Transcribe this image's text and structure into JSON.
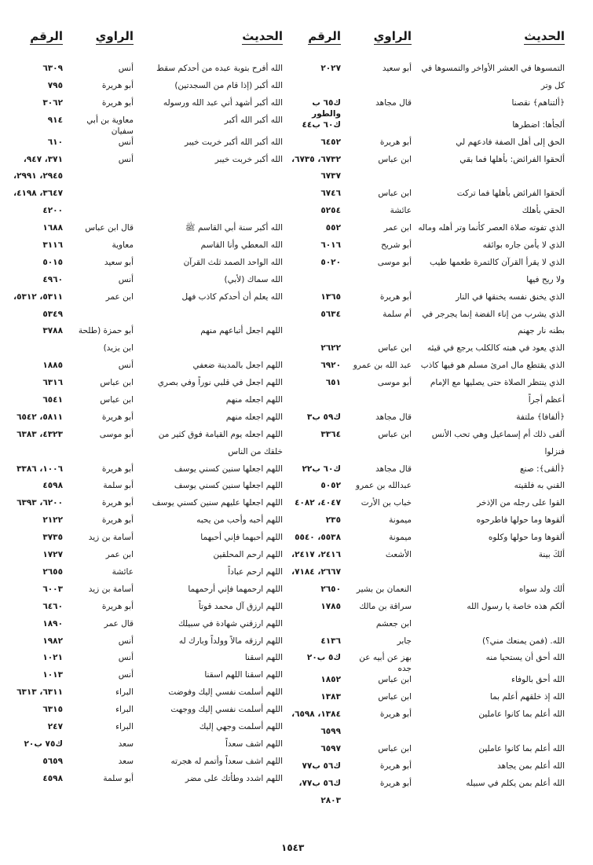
{
  "headers": {
    "hadith": "الحديث",
    "rawi": "الراوي",
    "number": "الرقم"
  },
  "right_half": {
    "rows": [
      {
        "hadith": "التمسوها في العشر الأواخر والتمسوها في",
        "rawi": "أبو سعيد",
        "number": "٢٠٢٧"
      },
      {
        "hadith": "كل وتر",
        "rawi": "",
        "number": ""
      },
      {
        "hadith": "﴿ألتناهم﴾ نقصنا",
        "rawi": "قال مجاهد",
        "number": "ك٦٥ ب والطور"
      },
      {
        "hadith": "ألجأها: اضطرها",
        "rawi": "",
        "number": "ك٦٠ ب٤٤"
      },
      {
        "hadith": "الحق إلى أهل الصفة فادعهم لي",
        "rawi": "أبو هريرة",
        "number": "٦٤٥٢"
      },
      {
        "hadith": "ألحقوا الفرائض: بأهلها فما بقي",
        "rawi": "ابن عباس",
        "number": "٦٧٣٢، ٦٧٣٥،"
      },
      {
        "hadith": "",
        "rawi": "",
        "number": "٦٧٣٧"
      },
      {
        "hadith": "ألحقوا الفرائض بأهلها فما تركت",
        "rawi": "ابن عباس",
        "number": "٦٧٤٦"
      },
      {
        "hadith": "الحقي بأهلك",
        "rawi": "عائشة",
        "number": "٥٢٥٤"
      },
      {
        "hadith": "الذي تفوته صلاة العصر كأنما وتر أهله وماله",
        "rawi": "ابن عمر",
        "number": "٥٥٢"
      },
      {
        "hadith": "الذي لا يأمن جاره بوائقه",
        "rawi": "أبو شريح",
        "number": "٦٠١٦"
      },
      {
        "hadith": "الذي لا يقرأ القرآن كالتمرة طعمها طيب",
        "rawi": "أبو موسى",
        "number": "٥٠٢٠"
      },
      {
        "hadith": "ولا ريح فيها",
        "rawi": "",
        "number": ""
      },
      {
        "hadith": "الذي يخنق نفسه يخنقها في النار",
        "rawi": "أبو هريرة",
        "number": "١٣٦٥"
      },
      {
        "hadith": "الذي يشرب من إناء الفضة إنما يجرجر في",
        "rawi": "أم سلمة",
        "number": "٥٦٣٤"
      },
      {
        "hadith": "بطنه نار جهنم",
        "rawi": "",
        "number": ""
      },
      {
        "hadith": "الذي يعود في هبته كالكلب يرجع في قيئه",
        "rawi": "ابن عباس",
        "number": "٢٦٢٢"
      },
      {
        "hadith": "الذي يقتطع مال امرئ مسلم هو فيها كاذب",
        "rawi": "عبد الله بن عمرو",
        "number": "٦٩٢٠"
      },
      {
        "hadith": "الذي ينتظر الصلاة حتى يصليها مع الإمام",
        "rawi": "أبو موسى",
        "number": "٦٥١"
      },
      {
        "hadith": "أعظم أجراً",
        "rawi": "",
        "number": ""
      },
      {
        "hadith": "﴿ألفافا﴾ ملتفة",
        "rawi": "قال مجاهد",
        "number": "ك٥٩ ب٣"
      },
      {
        "hadith": "ألفى ذلك أم إسماعيل وهي تحب الأنس",
        "rawi": "ابن عباس",
        "number": "٣٣٦٤"
      },
      {
        "hadith": "فنزلوا",
        "rawi": "",
        "number": ""
      },
      {
        "hadith": "﴿ألقى﴾: صنع",
        "rawi": "قال مجاهد",
        "number": "ك٦٠ ب٢٢"
      },
      {
        "hadith": "القني به فلقيته",
        "rawi": "عبدالله بن عمرو",
        "number": "٥٠٥٢"
      },
      {
        "hadith": "القوا على رجله من الإذخر",
        "rawi": "خباب بن الأرت",
        "number": "٤٠٤٧، ٤٠٨٢"
      },
      {
        "hadith": "ألقوها وما حولها فاطرحوه",
        "rawi": "ميمونة",
        "number": "٢٣٥"
      },
      {
        "hadith": "ألقوها وما حولها وكلوه",
        "rawi": "ميمونة",
        "number": "٥٥٣٨، ٥٥٤٠"
      },
      {
        "hadith": "ألكَ بينة",
        "rawi": "الأشعث",
        "number": "٢٤١٦، ٢٤١٧،"
      },
      {
        "hadith": "",
        "rawi": "",
        "number": "٢٦٦٧، ٧١٨٤،"
      },
      {
        "hadith": "ألك ولد سواه",
        "rawi": "النعمان بن بشير",
        "number": "٢٦٥٠"
      },
      {
        "hadith": "ألكم هذه خاصة يا رسول الله",
        "rawi": "سراقة بن مالك",
        "number": "١٧٨٥"
      },
      {
        "hadith": "",
        "rawi": "ابن جعشم",
        "number": ""
      },
      {
        "hadith": "الله. (فمن يمنعك مني؟)",
        "rawi": "جابر",
        "number": "٤١٣٦"
      },
      {
        "hadith": "الله أحق أن يستحيا منه",
        "rawi": "بهز عن أبيه عن جده",
        "number": "ك٥ ب٢٠"
      },
      {
        "hadith": "الله أحق بالوفاء",
        "rawi": "ابن عباس",
        "number": "١٨٥٢"
      },
      {
        "hadith": "الله إذ خلقهم أعلم بما",
        "rawi": "ابن عباس",
        "number": "١٣٨٣"
      },
      {
        "hadith": "الله أعلم بما كانوا عاملين",
        "rawi": "أبو هريرة",
        "number": "١٣٨٤، ٦٥٩٨،"
      },
      {
        "hadith": "",
        "rawi": "",
        "number": "٦٥٩٩"
      },
      {
        "hadith": "الله أعلم بما كانوا عاملين",
        "rawi": "ابن عباس",
        "number": "٦٥٩٧"
      },
      {
        "hadith": "الله أعلم بمن يجاهد",
        "rawi": "أبو هريرة",
        "number": "ك٥٦ ب٧٧"
      },
      {
        "hadith": "الله أعلم بمن يكلم في سبيله",
        "rawi": "أبو هريرة",
        "number": "ك٥٦ ب٧٧،"
      },
      {
        "hadith": "",
        "rawi": "",
        "number": "٢٨٠٣"
      }
    ]
  },
  "left_half": {
    "rows": [
      {
        "hadith": "الله أفرح بتوبة عبده من أحدكم سقط",
        "rawi": "أنس",
        "number": "٦٣٠٩"
      },
      {
        "hadith": "الله أكبر (إذا قام من السجدتين)",
        "rawi": "أبو هريرة",
        "number": "٧٩٥"
      },
      {
        "hadith": "الله أكبر أشهد أني عبد الله ورسوله",
        "rawi": "أبو هريرة",
        "number": "٣٠٦٢"
      },
      {
        "hadith": "الله أكبر الله أكبر",
        "rawi": "معاوية بن أبي سفيان",
        "number": "٩١٤"
      },
      {
        "hadith": "الله أكبر الله أكبر خربت خيبر",
        "rawi": "أنس",
        "number": "٦١٠"
      },
      {
        "hadith": "الله أكبر خربت خيبر",
        "rawi": "أنس",
        "number": "٣٧١، ٩٤٧،"
      },
      {
        "hadith": "",
        "rawi": "",
        "number": "٢٩٤٥، ٢٩٩١،"
      },
      {
        "hadith": "",
        "rawi": "",
        "number": "٣٦٤٧، ٤١٩٨،"
      },
      {
        "hadith": "",
        "rawi": "",
        "number": "٤٢٠٠"
      },
      {
        "hadith": "الله أكبر سنة أبي القاسم ﷺ",
        "rawi": "قال ابن عباس",
        "number": "١٦٨٨"
      },
      {
        "hadith": "الله المعطي وأنا القاسم",
        "rawi": "معاوية",
        "number": "٣١١٦"
      },
      {
        "hadith": "الله الواحد الصمد ثلث القرآن",
        "rawi": "أبو سعيد",
        "number": "٥٠١٥"
      },
      {
        "hadith": "الله سماك (لأبي)",
        "rawi": "أنس",
        "number": "٤٩٦٠"
      },
      {
        "hadith": "الله يعلم أن أحدكم كاذب فهل",
        "rawi": "ابن عمر",
        "number": "٥٣١١، ٥٣١٢،"
      },
      {
        "hadith": "",
        "rawi": "",
        "number": "٥٣٤٩"
      },
      {
        "hadith": "اللهم اجعل أتباعهم منهم",
        "rawi": "أبو حمزة (طلحة",
        "number": "٣٧٨٨"
      },
      {
        "hadith": "",
        "rawi": "ابن يزيد)",
        "number": ""
      },
      {
        "hadith": "اللهم اجعل بالمدينة ضعفي",
        "rawi": "أنس",
        "number": "١٨٨٥"
      },
      {
        "hadith": "اللهم اجعل في قلبي نوراً وفي بصري",
        "rawi": "ابن عباس",
        "number": "٦٣١٦"
      },
      {
        "hadith": "اللهم اجعله منهم",
        "rawi": "ابن عباس",
        "number": "٦٥٤١"
      },
      {
        "hadith": "اللهم اجعله منهم",
        "rawi": "أبو هريرة",
        "number": "٥٨١١، ٦٥٤٢"
      },
      {
        "hadith": "اللهم اجعله يوم القيامة فوق كثير من",
        "rawi": "أبو موسى",
        "number": "٤٣٢٣، ٦٣٨٣"
      },
      {
        "hadith": "خلقك من الناس",
        "rawi": "",
        "number": ""
      },
      {
        "hadith": "اللهم اجعلها سنين كسني يوسف",
        "rawi": "أبو هريرة",
        "number": "١٠٠٦، ٣٣٨٦"
      },
      {
        "hadith": "اللهم اجعلها سنين كسني يوسف",
        "rawi": "أبو سلمة",
        "number": "٤٥٩٨"
      },
      {
        "hadith": "اللهم اجعلها عليهم سنين كسني يوسف",
        "rawi": "أبو هريرة",
        "number": "٦٢٠٠، ٦٣٩٣"
      },
      {
        "hadith": "اللهم أحبه وأحب من يحبه",
        "rawi": "أبو هريرة",
        "number": "٢١٢٢"
      },
      {
        "hadith": "اللهم أحبهما فإني أحبهما",
        "rawi": "أسامة بن زيد",
        "number": "٣٧٣٥"
      },
      {
        "hadith": "اللهم ارحم المحلقين",
        "rawi": "ابن عمر",
        "number": "١٧٢٧"
      },
      {
        "hadith": "اللهم ارحم عباداً",
        "rawi": "عائشة",
        "number": "٢٦٥٥"
      },
      {
        "hadith": "اللهم ارحمهما فإني أرحمهما",
        "rawi": "أسامة بن زيد",
        "number": "٦٠٠٣"
      },
      {
        "hadith": "اللهم ارزق آل محمد قوتاً",
        "rawi": "أبو هريرة",
        "number": "٦٤٦٠"
      },
      {
        "hadith": "اللهم ارزقني شهادة في سبيلك",
        "rawi": "قال عمر",
        "number": "١٨٩٠"
      },
      {
        "hadith": "اللهم ارزقه مالاً وولداً وبارك له",
        "rawi": "أنس",
        "number": "١٩٨٢"
      },
      {
        "hadith": "اللهم اسقنا",
        "rawi": "أنس",
        "number": "١٠٢١"
      },
      {
        "hadith": "اللهم اسقنا اللهم اسقنا",
        "rawi": "أنس",
        "number": "١٠١٣"
      },
      {
        "hadith": "اللهم أسلمت نفسي إليك وفوضت",
        "rawi": "البراء",
        "number": "٦٣١١، ٦٣١٣"
      },
      {
        "hadith": "اللهم أسلمت نفسي إليك ووجهت",
        "rawi": "البراء",
        "number": "٦٣١٥"
      },
      {
        "hadith": "اللهم أسلمت وجهي إليك",
        "rawi": "البراء",
        "number": "٢٤٧"
      },
      {
        "hadith": "اللهم اشف سعداً",
        "rawi": "سعد",
        "number": "ك٧٥ ب٢٠"
      },
      {
        "hadith": "اللهم اشف سعداً وأتمم له هجرته",
        "rawi": "سعد",
        "number": "٥٦٥٩"
      },
      {
        "hadith": "اللهم اشدد وطأتك على مضر",
        "rawi": "أبو سلمة",
        "number": "٤٥٩٨"
      }
    ]
  },
  "page_number": "١٥٤٣"
}
